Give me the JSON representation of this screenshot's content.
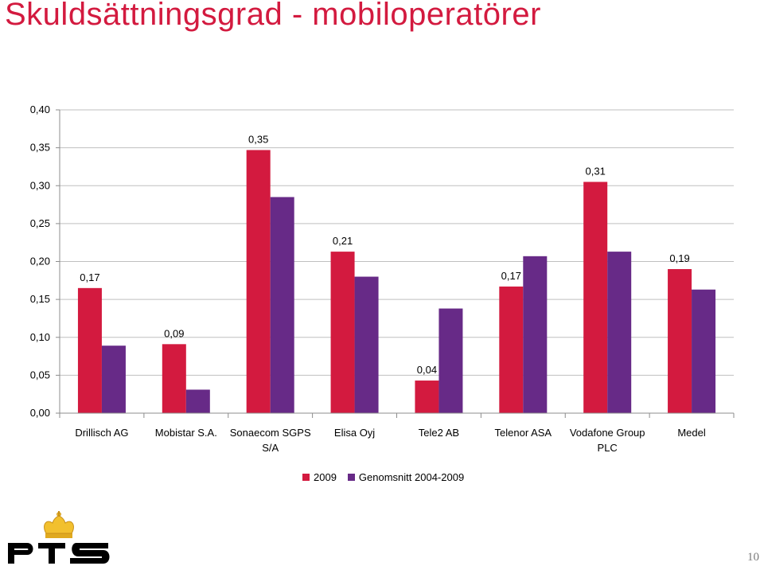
{
  "slide": {
    "title": "Skuldsättningsgrad - mobiloperatörer",
    "page_number": "10",
    "logo_text": "PTS"
  },
  "colors": {
    "series_2009": "#d31a3f",
    "series_avg": "#672a87",
    "title": "#d31a3f"
  },
  "chart_data": {
    "type": "bar",
    "title": "",
    "xlabel": "",
    "ylabel": "",
    "ylim": [
      0,
      0.4
    ],
    "yticks": [
      "0,00",
      "0,05",
      "0,10",
      "0,15",
      "0,20",
      "0,25",
      "0,30",
      "0,35",
      "0,40"
    ],
    "grid": true,
    "legend_position": "bottom",
    "categories": [
      [
        "Drillisch AG"
      ],
      [
        "Mobistar S.A."
      ],
      [
        "Sonaecom SGPS",
        "S/A"
      ],
      [
        "Elisa Oyj"
      ],
      [
        "Tele2 AB"
      ],
      [
        "Telenor ASA"
      ],
      [
        "Vodafone Group",
        "PLC"
      ],
      [
        "Medel"
      ]
    ],
    "series": [
      {
        "name": "2009",
        "values": [
          0.165,
          0.091,
          0.347,
          0.213,
          0.043,
          0.167,
          0.305,
          0.19
        ],
        "labels": [
          "0,17",
          "0,09",
          "0,35",
          "0,21",
          "0,04",
          "0,17",
          "0,31",
          "0,19"
        ]
      },
      {
        "name": "Genomsnitt 2004-2009",
        "values": [
          0.089,
          0.031,
          0.285,
          0.18,
          0.138,
          0.207,
          0.213,
          0.163
        ]
      }
    ]
  }
}
